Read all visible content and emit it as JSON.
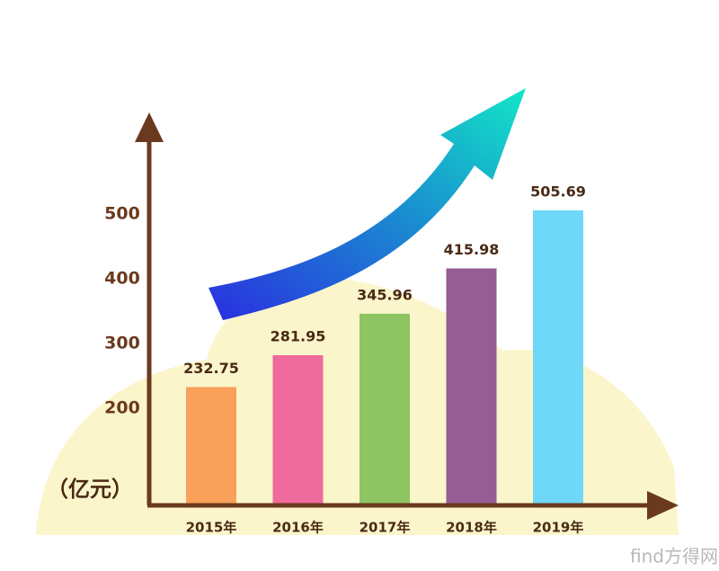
{
  "chart_data": {
    "type": "bar",
    "y_label": "（亿元）",
    "categories": [
      "2015年",
      "2016年",
      "2017年",
      "2018年",
      "2019年"
    ],
    "values": [
      232.75,
      281.95,
      345.96,
      415.98,
      505.69
    ],
    "colors": [
      "#f9a05a",
      "#ee6b9c",
      "#8ec462",
      "#955d94",
      "#6fd8f8"
    ],
    "ylim": [
      50,
      625
    ],
    "yticks": [
      200,
      300,
      400,
      500
    ],
    "grid": false,
    "watermark": "find方得网"
  }
}
